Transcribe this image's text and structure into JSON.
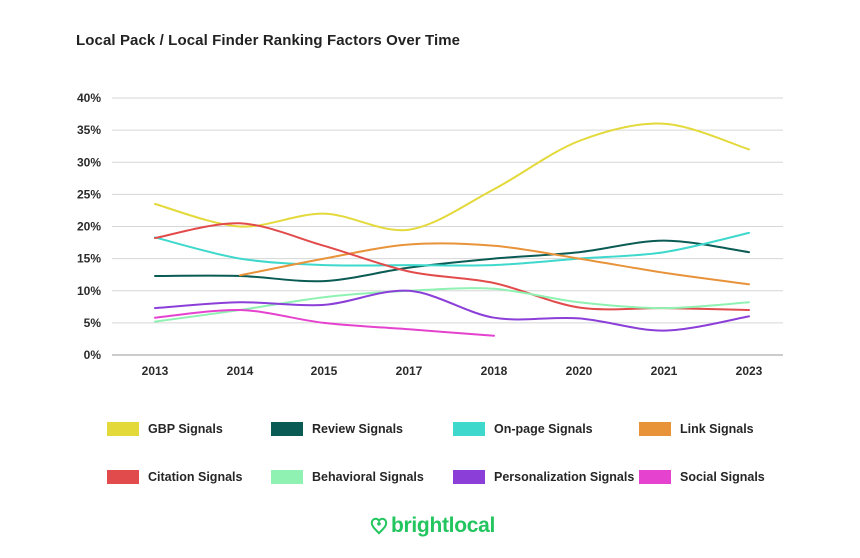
{
  "chart_data": {
    "type": "line",
    "title": "Local Pack / Local Finder Ranking Factors Over Time",
    "xlabel": "",
    "ylabel": "",
    "ylim": [
      0,
      40
    ],
    "yticks": [
      "0%",
      "5%",
      "10%",
      "15%",
      "20%",
      "25%",
      "30%",
      "35%",
      "40%"
    ],
    "categories": [
      "2013",
      "2014",
      "2015",
      "2017",
      "2018",
      "2020",
      "2021",
      "2023"
    ],
    "legend_position": "bottom",
    "series": [
      {
        "name": "GBP Signals",
        "color": "#e3d93b",
        "values": [
          23.5,
          20,
          22,
          19.5,
          25.8,
          33.3,
          36,
          32
        ]
      },
      {
        "name": "Review Signals",
        "color": "#0b5b55",
        "values": [
          12.3,
          12.3,
          11.5,
          13.6,
          15,
          16,
          17.8,
          16
        ]
      },
      {
        "name": "On-page Signals",
        "color": "#3ed8cc",
        "values": [
          18.3,
          15,
          14,
          14,
          14,
          15,
          16,
          19
        ]
      },
      {
        "name": "Link Signals",
        "color": "#e8933a",
        "values": [
          null,
          12.4,
          15,
          17.2,
          17,
          15,
          12.8,
          11
        ]
      },
      {
        "name": "Citation Signals",
        "color": "#e24b4b",
        "values": [
          18.2,
          20.5,
          17,
          13,
          11.2,
          7.4,
          7.3,
          7
        ]
      },
      {
        "name": "Behavioral Signals",
        "color": "#8ff2b2",
        "values": [
          5.2,
          7,
          9,
          10,
          10.3,
          8.2,
          7.3,
          8.2
        ]
      },
      {
        "name": "Personalization Signals",
        "color": "#8b3fd8",
        "values": [
          7.3,
          8.2,
          7.8,
          10,
          5.8,
          5.7,
          3.8,
          6
        ]
      },
      {
        "name": "Social Signals",
        "color": "#e542cf",
        "values": [
          5.8,
          7,
          5,
          4,
          3,
          null,
          null,
          null
        ]
      }
    ]
  },
  "brand": {
    "name": "brightlocal",
    "icon": "heart-pin-icon",
    "color": "#22c55e"
  }
}
